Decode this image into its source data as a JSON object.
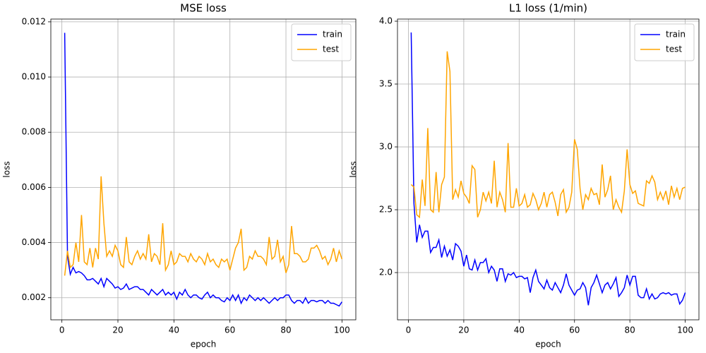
{
  "chart_data": [
    {
      "type": "line",
      "title": "MSE loss",
      "x_label": "epoch",
      "y_label": "loss",
      "grid": true,
      "legend": "upper right",
      "x": [
        1,
        2,
        3,
        4,
        5,
        6,
        7,
        8,
        9,
        10,
        11,
        12,
        13,
        14,
        15,
        16,
        17,
        18,
        19,
        20,
        21,
        22,
        23,
        24,
        25,
        26,
        27,
        28,
        29,
        30,
        31,
        32,
        33,
        34,
        35,
        36,
        37,
        38,
        39,
        40,
        41,
        42,
        43,
        44,
        45,
        46,
        47,
        48,
        49,
        50,
        51,
        52,
        53,
        54,
        55,
        56,
        57,
        58,
        59,
        60,
        61,
        62,
        63,
        64,
        65,
        66,
        67,
        68,
        69,
        70,
        71,
        72,
        73,
        74,
        75,
        76,
        77,
        78,
        79,
        80,
        81,
        82,
        83,
        84,
        85,
        86,
        87,
        88,
        89,
        90,
        91,
        92,
        93,
        94,
        95,
        96,
        97,
        98,
        99,
        100
      ],
      "xlim": [
        -3.95,
        104.95
      ],
      "xticks": [
        0,
        20,
        40,
        60,
        80,
        100
      ],
      "ylim": [
        0.0012,
        0.0121
      ],
      "yticks": [
        0.002,
        0.004,
        0.006,
        0.008,
        {
          "value": 0.01,
          "label": "0.010"
        },
        0.012
      ],
      "series": [
        {
          "name": "train",
          "color": "#0000ff",
          "values": [
            0.0116,
            0.0035,
            0.00285,
            0.0031,
            0.0029,
            0.00295,
            0.0029,
            0.0028,
            0.00265,
            0.00265,
            0.0027,
            0.0026,
            0.0025,
            0.0027,
            0.0024,
            0.0027,
            0.0026,
            0.0025,
            0.00235,
            0.0024,
            0.0023,
            0.00235,
            0.0025,
            0.0023,
            0.00235,
            0.0024,
            0.0024,
            0.0023,
            0.0023,
            0.0022,
            0.0021,
            0.0023,
            0.0022,
            0.0021,
            0.0022,
            0.0023,
            0.0021,
            0.0022,
            0.0021,
            0.0022,
            0.00195,
            0.0022,
            0.0021,
            0.0023,
            0.0021,
            0.002,
            0.0021,
            0.0021,
            0.002,
            0.00195,
            0.0021,
            0.0022,
            0.002,
            0.0021,
            0.002,
            0.002,
            0.0019,
            0.00185,
            0.002,
            0.0019,
            0.0021,
            0.0019,
            0.0021,
            0.0018,
            0.002,
            0.0019,
            0.0021,
            0.002,
            0.0019,
            0.002,
            0.0019,
            0.002,
            0.0019,
            0.0018,
            0.0019,
            0.002,
            0.0019,
            0.002,
            0.002,
            0.0021,
            0.0021,
            0.0019,
            0.0018,
            0.0019,
            0.0019,
            0.0018,
            0.002,
            0.0018,
            0.0019,
            0.0019,
            0.00185,
            0.0019,
            0.0019,
            0.0018,
            0.0019,
            0.0018,
            0.0018,
            0.00175,
            0.0017,
            0.00185
          ]
        },
        {
          "name": "test",
          "color": "#ffa500",
          "values": [
            0.0028,
            0.0037,
            0.0031,
            0.0032,
            0.004,
            0.0033,
            0.005,
            0.0033,
            0.0032,
            0.0038,
            0.0031,
            0.0038,
            0.0034,
            0.0064,
            0.0047,
            0.0035,
            0.0037,
            0.0035,
            0.0039,
            0.0037,
            0.0032,
            0.0031,
            0.0042,
            0.0033,
            0.0032,
            0.0035,
            0.0037,
            0.0034,
            0.0036,
            0.0034,
            0.0043,
            0.0033,
            0.0036,
            0.0035,
            0.0032,
            0.0047,
            0.003,
            0.0032,
            0.0037,
            0.0032,
            0.0033,
            0.0036,
            0.0035,
            0.0035,
            0.0033,
            0.0036,
            0.0034,
            0.0033,
            0.0035,
            0.0034,
            0.0032,
            0.0036,
            0.0033,
            0.0034,
            0.0032,
            0.0031,
            0.0034,
            0.0033,
            0.0034,
            0.003,
            0.0034,
            0.0038,
            0.004,
            0.0045,
            0.003,
            0.0031,
            0.0035,
            0.0034,
            0.0037,
            0.0035,
            0.0035,
            0.0034,
            0.0032,
            0.0042,
            0.0034,
            0.0035,
            0.0041,
            0.0033,
            0.0035,
            0.0029,
            0.0032,
            0.0046,
            0.0036,
            0.0036,
            0.0035,
            0.0033,
            0.0033,
            0.0034,
            0.0038,
            0.0038,
            0.0039,
            0.0037,
            0.0034,
            0.0035,
            0.0032,
            0.0034,
            0.0038,
            0.0033,
            0.0037,
            0.0034
          ]
        }
      ]
    },
    {
      "type": "line",
      "title": "L1 loss (1/min)",
      "x_label": "epoch",
      "y_label": "loss",
      "grid": true,
      "legend": "upper right",
      "x": [
        1,
        2,
        3,
        4,
        5,
        6,
        7,
        8,
        9,
        10,
        11,
        12,
        13,
        14,
        15,
        16,
        17,
        18,
        19,
        20,
        21,
        22,
        23,
        24,
        25,
        26,
        27,
        28,
        29,
        30,
        31,
        32,
        33,
        34,
        35,
        36,
        37,
        38,
        39,
        40,
        41,
        42,
        43,
        44,
        45,
        46,
        47,
        48,
        49,
        50,
        51,
        52,
        53,
        54,
        55,
        56,
        57,
        58,
        59,
        60,
        61,
        62,
        63,
        64,
        65,
        66,
        67,
        68,
        69,
        70,
        71,
        72,
        73,
        74,
        75,
        76,
        77,
        78,
        79,
        80,
        81,
        82,
        83,
        84,
        85,
        86,
        87,
        88,
        89,
        90,
        91,
        92,
        93,
        94,
        95,
        96,
        97,
        98,
        99,
        100
      ],
      "xlim": [
        -3.95,
        104.95
      ],
      "xticks": [
        0,
        20,
        40,
        60,
        80,
        100
      ],
      "ylim": [
        1.624,
        4.017
      ],
      "yticks": [
        {
          "value": 2,
          "label": "2.0"
        },
        2.5,
        {
          "value": 3,
          "label": "3.0"
        },
        3.5,
        {
          "value": 4,
          "label": "4.0"
        }
      ],
      "series": [
        {
          "name": "train",
          "color": "#0000ff",
          "values": [
            3.91,
            2.55,
            2.24,
            2.38,
            2.28,
            2.33,
            2.33,
            2.16,
            2.2,
            2.2,
            2.26,
            2.12,
            2.21,
            2.13,
            2.18,
            2.1,
            2.23,
            2.21,
            2.17,
            2.05,
            2.14,
            2.03,
            2.02,
            2.1,
            2.02,
            2.08,
            2.08,
            2.11,
            2,
            2.05,
            2.02,
            1.93,
            2.03,
            2.03,
            1.93,
            1.99,
            1.98,
            2,
            1.96,
            1.97,
            1.97,
            1.95,
            1.96,
            1.84,
            1.96,
            2.02,
            1.93,
            1.9,
            1.87,
            1.94,
            1.88,
            1.86,
            1.92,
            1.88,
            1.84,
            1.9,
            1.99,
            1.9,
            1.86,
            1.82,
            1.86,
            1.87,
            1.92,
            1.88,
            1.74,
            1.88,
            1.92,
            1.98,
            1.91,
            1.84,
            1.9,
            1.92,
            1.87,
            1.91,
            1.96,
            1.81,
            1.84,
            1.88,
            1.98,
            1.9,
            1.97,
            1.97,
            1.82,
            1.8,
            1.8,
            1.87,
            1.79,
            1.83,
            1.79,
            1.8,
            1.83,
            1.84,
            1.83,
            1.84,
            1.82,
            1.83,
            1.83,
            1.75,
            1.78,
            1.84
          ]
        },
        {
          "name": "test",
          "color": "#ffa500",
          "values": [
            2.7,
            2.68,
            2.46,
            2.44,
            2.74,
            2.53,
            3.15,
            2.5,
            2.48,
            2.8,
            2.48,
            2.7,
            2.76,
            3.76,
            3.6,
            2.58,
            2.66,
            2.6,
            2.73,
            2.63,
            2.6,
            2.55,
            2.85,
            2.82,
            2.44,
            2.5,
            2.64,
            2.57,
            2.64,
            2.55,
            2.89,
            2.52,
            2.64,
            2.58,
            2.48,
            3.03,
            2.52,
            2.52,
            2.67,
            2.53,
            2.55,
            2.62,
            2.52,
            2.54,
            2.63,
            2.58,
            2.5,
            2.55,
            2.64,
            2.52,
            2.62,
            2.64,
            2.56,
            2.45,
            2.62,
            2.66,
            2.48,
            2.52,
            2.64,
            3.06,
            2.98,
            2.67,
            2.5,
            2.62,
            2.58,
            2.67,
            2.62,
            2.63,
            2.54,
            2.86,
            2.6,
            2.66,
            2.77,
            2.5,
            2.58,
            2.52,
            2.48,
            2.65,
            2.98,
            2.7,
            2.63,
            2.65,
            2.55,
            2.54,
            2.53,
            2.73,
            2.71,
            2.77,
            2.72,
            2.58,
            2.64,
            2.58,
            2.65,
            2.54,
            2.69,
            2.6,
            2.67,
            2.58,
            2.67,
            2.68
          ]
        }
      ]
    }
  ]
}
